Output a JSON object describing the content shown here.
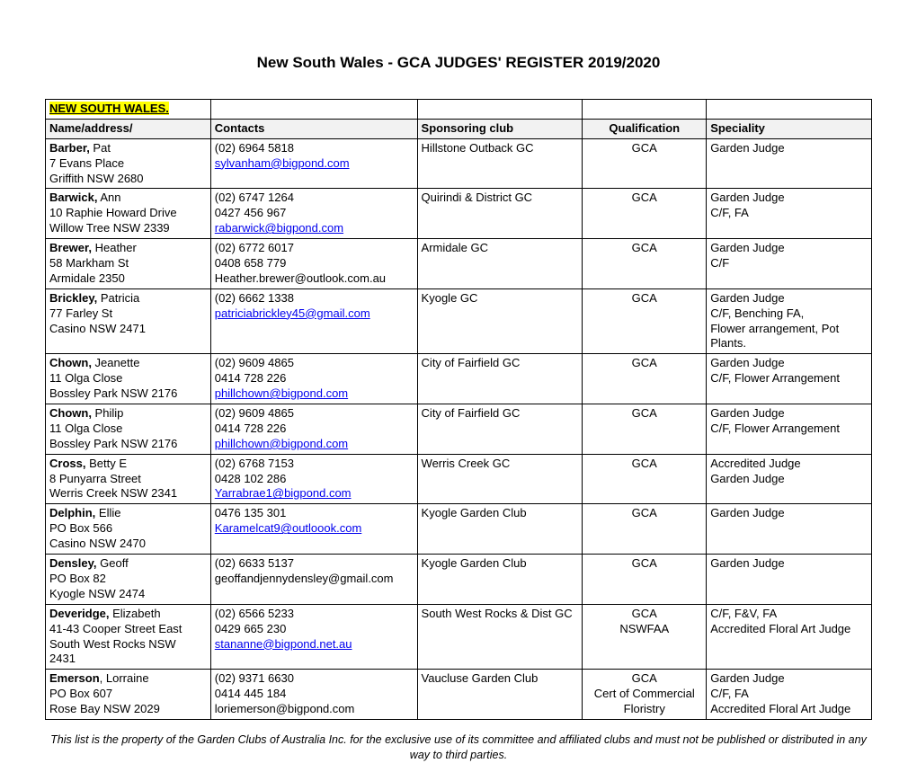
{
  "title": "New South Wales - GCA JUDGES' REGISTER 2019/2020",
  "region_label": "NEW SOUTH WALES.",
  "columns": {
    "name": "Name/address/",
    "contacts": "Contacts",
    "club": "Sponsoring club",
    "qual": "Qualification",
    "spec": "Speciality"
  },
  "rows": [
    {
      "name_bold": "Barber,",
      "name_rest": " Pat",
      "address": [
        "7 Evans Place",
        "Griffith NSW 2680"
      ],
      "contacts": [
        "(02) 6964 5818"
      ],
      "emails": [
        "sylvanham@bigpond.com"
      ],
      "club": "Hillstone Outback GC",
      "qual": [
        "GCA"
      ],
      "spec": [
        "Garden Judge"
      ]
    },
    {
      "name_bold": "Barwick,",
      "name_rest": " Ann",
      "address": [
        "10 Raphie Howard Drive",
        "Willow Tree NSW 2339"
      ],
      "contacts": [
        "(02) 6747 1264",
        "0427 456 967"
      ],
      "emails": [
        "rabarwick@bigpond.com"
      ],
      "club": "Quirindi & District GC",
      "qual": [
        "GCA"
      ],
      "spec": [
        "Garden Judge",
        "C/F, FA"
      ]
    },
    {
      "name_bold": "Brewer,",
      "name_rest": " Heather",
      "address": [
        "58 Markham St",
        "Armidale 2350"
      ],
      "contacts": [
        "(02) 6772 6017",
        "0408 658 779",
        "Heather.brewer@outlook.com.au"
      ],
      "emails": [],
      "club": "Armidale GC",
      "qual": [
        "GCA"
      ],
      "spec": [
        "Garden Judge",
        "C/F"
      ]
    },
    {
      "name_bold": "Brickley,",
      "name_rest": " Patricia",
      "address": [
        "77 Farley St",
        "Casino NSW 2471"
      ],
      "contacts": [
        "(02) 6662 1338"
      ],
      "emails": [
        "patriciabrickley45@gmail.com"
      ],
      "club": "Kyogle GC",
      "qual": [
        "GCA"
      ],
      "spec": [
        "Garden Judge",
        "C/F, Benching FA,",
        "Flower arrangement, Pot Plants."
      ]
    },
    {
      "name_bold": "Chown,",
      "name_rest": " Jeanette",
      "address": [
        "11 Olga Close",
        "Bossley Park NSW 2176"
      ],
      "contacts": [
        "(02) 9609 4865",
        "0414 728 226"
      ],
      "emails": [
        "phillchown@bigpond.com"
      ],
      "club": "City of Fairfield GC",
      "qual": [
        "GCA"
      ],
      "spec": [
        "Garden Judge",
        "C/F, Flower Arrangement"
      ]
    },
    {
      "name_bold": "Chown,",
      "name_rest": " Philip",
      "address": [
        "11 Olga Close",
        "Bossley Park NSW 2176"
      ],
      "contacts": [
        "(02) 9609 4865",
        "0414 728 226"
      ],
      "emails": [
        "phillchown@bigpond.com"
      ],
      "club": "City of Fairfield GC",
      "qual": [
        "GCA"
      ],
      "spec": [
        "Garden Judge",
        "C/F, Flower Arrangement"
      ]
    },
    {
      "name_bold": "Cross,",
      "name_rest": " Betty E",
      "address": [
        "8 Punyarra Street",
        "Werris Creek NSW 2341"
      ],
      "contacts": [
        "(02) 6768 7153",
        "0428 102 286"
      ],
      "emails": [
        "Yarrabrae1@bigpond.com"
      ],
      "club": "Werris Creek GC",
      "qual": [
        "GCA"
      ],
      "spec": [
        "Accredited Judge",
        "Garden Judge"
      ]
    },
    {
      "name_bold": "Delphin,",
      "name_rest": " Ellie",
      "address": [
        "PO Box 566",
        "Casino NSW 2470"
      ],
      "contacts": [
        "0476 135 301"
      ],
      "emails": [
        "Karamelcat9@outloook.com"
      ],
      "club": "Kyogle Garden Club",
      "qual": [
        "GCA"
      ],
      "spec": [
        "Garden Judge"
      ]
    },
    {
      "name_bold": "Densley,",
      "name_rest": " Geoff",
      "address": [
        "PO Box 82",
        "Kyogle NSW 2474"
      ],
      "contacts": [
        "(02) 6633 5137",
        "geoffandjennydensley@gmail.com"
      ],
      "emails": [],
      "club": "Kyogle Garden Club",
      "qual": [
        "GCA"
      ],
      "spec": [
        "Garden Judge"
      ]
    },
    {
      "name_bold": "Deveridge,",
      "name_rest": " Elizabeth",
      "address": [
        "41-43 Cooper Street East",
        "South West Rocks NSW",
        "2431"
      ],
      "contacts": [
        "(02) 6566 5233",
        "0429 665 230"
      ],
      "emails": [
        "stananne@bigpond.net.au"
      ],
      "club": "South West Rocks & Dist GC",
      "qual": [
        "GCA",
        "NSWFAA"
      ],
      "spec": [
        "C/F, F&V, FA",
        "Accredited Floral Art Judge"
      ]
    },
    {
      "name_bold": "Emerson",
      "name_rest": ", Lorraine",
      "address": [
        "PO Box 607",
        "Rose Bay NSW 2029"
      ],
      "contacts": [
        "(02) 9371 6630",
        "0414 445 184",
        "loriemerson@bigpond.com"
      ],
      "emails": [],
      "club": "Vaucluse Garden Club",
      "qual": [
        "GCA",
        "Cert of Commercial",
        "Floristry"
      ],
      "spec": [
        "Garden Judge",
        "C/F, FA",
        "Accredited Floral Art Judge"
      ]
    }
  ],
  "footer": "This list is the property of the Garden Clubs of Australia Inc. for the exclusive use of its committee and affiliated clubs and must not be published or distributed in any way to third parties."
}
